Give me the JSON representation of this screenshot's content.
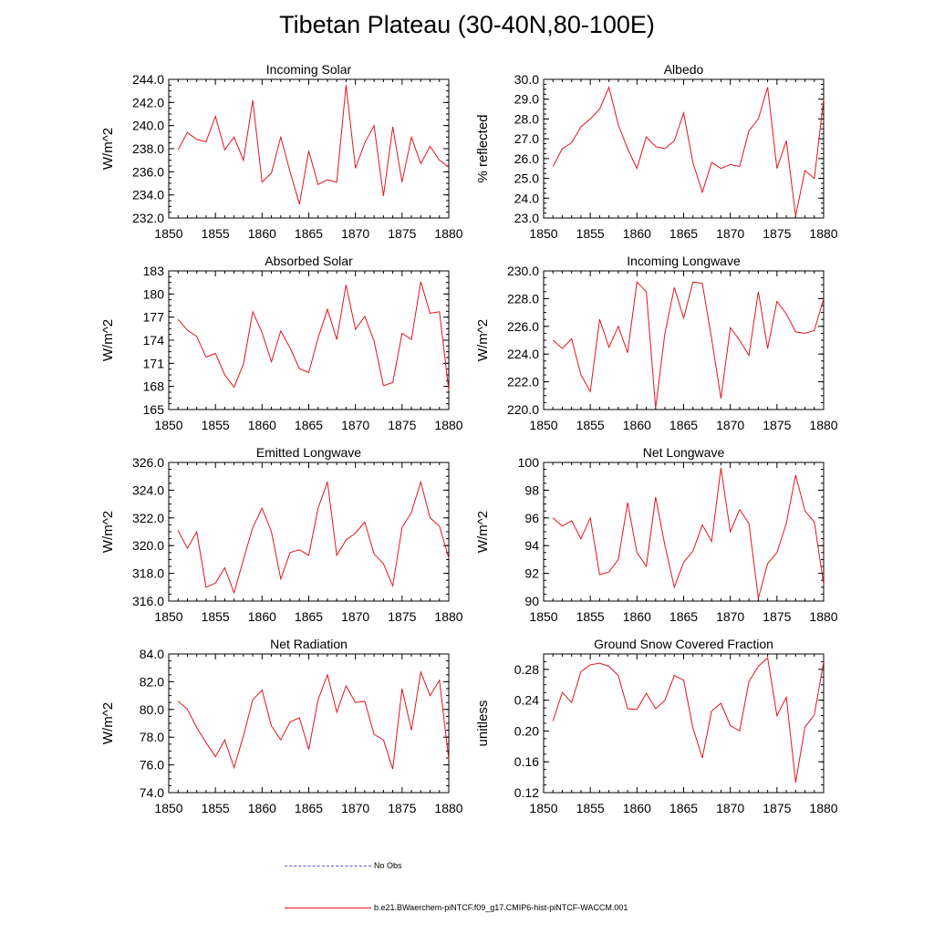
{
  "title": "Tibetan Plateau (30-40N,80-100E)",
  "colors": {
    "model_line": "#e8141c",
    "obs_line": "#5a5ae6",
    "axis": "#000000"
  },
  "legend": {
    "obs_label": "No Obs",
    "model_label": "b.e21.BWaerchem-piNTCF.f09_g17.CMIP6-hist-piNTCF-WACCM.001"
  },
  "chart_data": [
    {
      "type": "line",
      "title": "Incoming Solar",
      "ylabel": "W/m^2",
      "xlim": [
        1850,
        1880
      ],
      "ylim": [
        232,
        244
      ],
      "xticks": [
        "1850",
        "1855",
        "1860",
        "1865",
        "1870",
        "1875",
        "1880"
      ],
      "yticks": [
        "232.0",
        "234.0",
        "236.0",
        "238.0",
        "240.0",
        "242.0",
        "244.0"
      ],
      "x": [
        1851,
        1852,
        1853,
        1854,
        1855,
        1856,
        1857,
        1858,
        1859,
        1860,
        1861,
        1862,
        1863,
        1864,
        1865,
        1866,
        1867,
        1868,
        1869,
        1870,
        1871,
        1872,
        1873,
        1874,
        1875,
        1876,
        1877,
        1878,
        1879,
        1880
      ],
      "series": [
        {
          "values": [
            237.9,
            239.4,
            238.8,
            238.6,
            240.8,
            237.9,
            239.0,
            237.0,
            242.2,
            235.1,
            235.9,
            239.0,
            236.0,
            233.2,
            237.8,
            234.9,
            235.3,
            235.1,
            243.5,
            236.3,
            238.5,
            240.0,
            233.9,
            239.9,
            235.1,
            239.0,
            236.7,
            238.2,
            237.0,
            236.4
          ]
        }
      ]
    },
    {
      "type": "line",
      "title": "Albedo",
      "ylabel": "% reflected",
      "xlim": [
        1850,
        1880
      ],
      "ylim": [
        23,
        30
      ],
      "xticks": [
        "1850",
        "1855",
        "1860",
        "1865",
        "1870",
        "1875",
        "1880"
      ],
      "yticks": [
        "23.0",
        "24.0",
        "25.0",
        "26.0",
        "27.0",
        "28.0",
        "29.0",
        "30.0"
      ],
      "x": [
        1851,
        1852,
        1853,
        1854,
        1855,
        1856,
        1857,
        1858,
        1859,
        1860,
        1861,
        1862,
        1863,
        1864,
        1865,
        1866,
        1867,
        1868,
        1869,
        1870,
        1871,
        1872,
        1873,
        1874,
        1875,
        1876,
        1877,
        1878,
        1879,
        1880
      ],
      "series": [
        {
          "values": [
            25.6,
            26.5,
            26.8,
            27.6,
            28.0,
            28.5,
            29.6,
            27.7,
            26.5,
            25.5,
            27.1,
            26.6,
            26.5,
            26.9,
            28.3,
            25.8,
            24.3,
            25.8,
            25.5,
            25.7,
            25.6,
            27.4,
            28.0,
            29.6,
            25.5,
            26.9,
            23.1,
            25.4,
            25.0,
            29.0
          ]
        }
      ]
    },
    {
      "type": "line",
      "title": "Absorbed Solar",
      "ylabel": "W/m^2",
      "xlim": [
        1850,
        1880
      ],
      "ylim": [
        165,
        183
      ],
      "xticks": [
        "1850",
        "1855",
        "1860",
        "1865",
        "1870",
        "1875",
        "1880"
      ],
      "yticks": [
        "165",
        "168",
        "171",
        "174",
        "177",
        "180",
        "183"
      ],
      "x": [
        1851,
        1852,
        1853,
        1854,
        1855,
        1856,
        1857,
        1858,
        1859,
        1860,
        1861,
        1862,
        1863,
        1864,
        1865,
        1866,
        1867,
        1868,
        1869,
        1870,
        1871,
        1872,
        1873,
        1874,
        1875,
        1876,
        1877,
        1878,
        1879,
        1880
      ],
      "series": [
        {
          "values": [
            176.7,
            175.3,
            174.5,
            171.8,
            172.3,
            169.5,
            167.9,
            170.9,
            177.7,
            175.0,
            171.2,
            175.2,
            173.0,
            170.3,
            169.8,
            174.3,
            178.0,
            174.1,
            181.2,
            175.4,
            177.1,
            173.9,
            168.1,
            168.5,
            174.9,
            174.1,
            181.6,
            177.5,
            177.7,
            167.5
          ]
        }
      ]
    },
    {
      "type": "line",
      "title": "Incoming Longwave",
      "ylabel": "W/m^2",
      "xlim": [
        1850,
        1880
      ],
      "ylim": [
        220,
        230
      ],
      "xticks": [
        "1850",
        "1855",
        "1860",
        "1865",
        "1870",
        "1875",
        "1880"
      ],
      "yticks": [
        "220.0",
        "222.0",
        "224.0",
        "226.0",
        "228.0",
        "230.0"
      ],
      "x": [
        1851,
        1852,
        1853,
        1854,
        1855,
        1856,
        1857,
        1858,
        1859,
        1860,
        1861,
        1862,
        1863,
        1864,
        1865,
        1866,
        1867,
        1868,
        1869,
        1870,
        1871,
        1872,
        1873,
        1874,
        1875,
        1876,
        1877,
        1878,
        1879,
        1880
      ],
      "series": [
        {
          "values": [
            225.0,
            224.4,
            225.1,
            222.5,
            221.3,
            226.5,
            224.5,
            226.0,
            224.1,
            229.2,
            228.5,
            220.1,
            225.5,
            228.8,
            226.6,
            229.2,
            229.1,
            225.1,
            220.8,
            225.9,
            225.0,
            223.9,
            228.5,
            224.4,
            227.8,
            226.9,
            225.6,
            225.5,
            225.7,
            228.0
          ]
        }
      ]
    },
    {
      "type": "line",
      "title": "Emitted Longwave",
      "ylabel": "W/m^2",
      "xlim": [
        1850,
        1880
      ],
      "ylim": [
        316,
        326
      ],
      "xticks": [
        "1850",
        "1855",
        "1860",
        "1865",
        "1870",
        "1875",
        "1880"
      ],
      "yticks": [
        "316.0",
        "318.0",
        "320.0",
        "322.0",
        "324.0",
        "326.0"
      ],
      "x": [
        1851,
        1852,
        1853,
        1854,
        1855,
        1856,
        1857,
        1858,
        1859,
        1860,
        1861,
        1862,
        1863,
        1864,
        1865,
        1866,
        1867,
        1868,
        1869,
        1870,
        1871,
        1872,
        1873,
        1874,
        1875,
        1876,
        1877,
        1878,
        1879,
        1880
      ],
      "series": [
        {
          "values": [
            321.1,
            319.8,
            321.0,
            317.0,
            317.3,
            318.4,
            316.6,
            319.0,
            321.3,
            322.7,
            321.0,
            317.6,
            319.5,
            319.7,
            319.3,
            322.7,
            324.6,
            319.3,
            320.4,
            320.9,
            321.7,
            319.4,
            318.7,
            317.1,
            321.3,
            322.4,
            324.6,
            322.0,
            321.4,
            319.1
          ]
        }
      ]
    },
    {
      "type": "line",
      "title": "Net Longwave",
      "ylabel": "W/m^2",
      "xlim": [
        1850,
        1880
      ],
      "ylim": [
        90,
        100
      ],
      "xticks": [
        "1850",
        "1855",
        "1860",
        "1865",
        "1870",
        "1875",
        "1880"
      ],
      "yticks": [
        "90",
        "92",
        "94",
        "96",
        "98",
        "100"
      ],
      "x": [
        1851,
        1852,
        1853,
        1854,
        1855,
        1856,
        1857,
        1858,
        1859,
        1860,
        1861,
        1862,
        1863,
        1864,
        1865,
        1866,
        1867,
        1868,
        1869,
        1870,
        1871,
        1872,
        1873,
        1874,
        1875,
        1876,
        1877,
        1878,
        1879,
        1880
      ],
      "series": [
        {
          "values": [
            96.0,
            95.4,
            95.8,
            94.5,
            96.0,
            91.9,
            92.1,
            93.0,
            97.1,
            93.5,
            92.5,
            97.5,
            94.0,
            91.0,
            92.8,
            93.6,
            95.5,
            94.3,
            99.6,
            95.0,
            96.6,
            95.6,
            90.2,
            92.7,
            93.5,
            95.6,
            99.1,
            96.5,
            95.7,
            91.2
          ]
        }
      ]
    },
    {
      "type": "line",
      "title": "Net Radiation",
      "ylabel": "W/m^2",
      "xlim": [
        1850,
        1880
      ],
      "ylim": [
        74,
        84
      ],
      "xticks": [
        "1850",
        "1855",
        "1860",
        "1865",
        "1870",
        "1875",
        "1880"
      ],
      "yticks": [
        "74.0",
        "76.0",
        "78.0",
        "80.0",
        "82.0",
        "84.0"
      ],
      "x": [
        1851,
        1852,
        1853,
        1854,
        1855,
        1856,
        1857,
        1858,
        1859,
        1860,
        1861,
        1862,
        1863,
        1864,
        1865,
        1866,
        1867,
        1868,
        1869,
        1870,
        1871,
        1872,
        1873,
        1874,
        1875,
        1876,
        1877,
        1878,
        1879,
        1880
      ],
      "series": [
        {
          "values": [
            80.6,
            80.0,
            78.7,
            77.6,
            76.6,
            77.8,
            75.8,
            78.1,
            80.7,
            81.4,
            78.8,
            77.8,
            79.1,
            79.4,
            77.1,
            80.7,
            82.5,
            79.8,
            81.7,
            80.5,
            80.6,
            78.2,
            77.8,
            75.7,
            81.5,
            78.5,
            82.7,
            81.0,
            82.1,
            76.4
          ]
        }
      ]
    },
    {
      "type": "line",
      "title": "Ground Snow Covered Fraction",
      "ylabel": "unitless",
      "xlim": [
        1850,
        1880
      ],
      "ylim": [
        0.12,
        0.3
      ],
      "xticks": [
        "1850",
        "1855",
        "1860",
        "1865",
        "1870",
        "1875",
        "1880"
      ],
      "yticks": [
        "0.12",
        "0.16",
        "0.20",
        "0.24",
        "0.28"
      ],
      "x": [
        1851,
        1852,
        1853,
        1854,
        1855,
        1856,
        1857,
        1858,
        1859,
        1860,
        1861,
        1862,
        1863,
        1864,
        1865,
        1866,
        1867,
        1868,
        1869,
        1870,
        1871,
        1872,
        1873,
        1874,
        1875,
        1876,
        1877,
        1878,
        1879,
        1880
      ],
      "series": [
        {
          "values": [
            0.213,
            0.25,
            0.237,
            0.277,
            0.286,
            0.288,
            0.284,
            0.272,
            0.229,
            0.228,
            0.249,
            0.229,
            0.24,
            0.272,
            0.266,
            0.204,
            0.165,
            0.226,
            0.236,
            0.207,
            0.2,
            0.264,
            0.284,
            0.295,
            0.22,
            0.244,
            0.133,
            0.205,
            0.221,
            0.29
          ]
        }
      ]
    }
  ]
}
